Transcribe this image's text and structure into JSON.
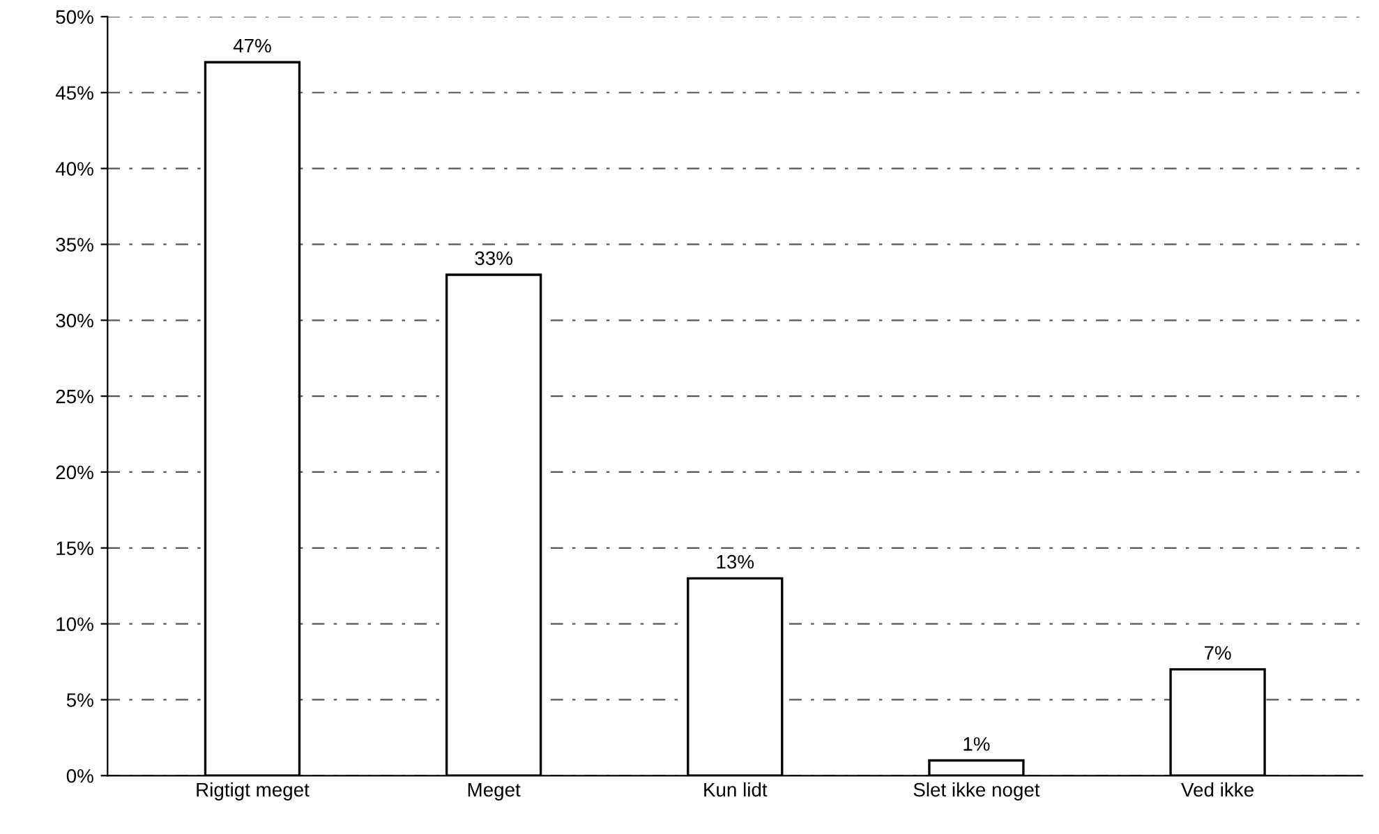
{
  "chart_data": {
    "type": "bar",
    "categories": [
      "Rigtigt meget",
      "Meget",
      "Kun lidt",
      "Slet ikke noget",
      "Ved ikke"
    ],
    "values": [
      47,
      33,
      13,
      1,
      7
    ],
    "color": "#ffffff",
    "value_labels": [
      "47%",
      "33%",
      "13%",
      "1%",
      "7%"
    ],
    "ylim": [
      0,
      50
    ],
    "yticks": [
      {
        "value": 0,
        "label": "0%"
      },
      {
        "value": 5,
        "label": "5%"
      },
      {
        "value": 10,
        "label": "10%"
      },
      {
        "value": 15,
        "label": "15%"
      },
      {
        "value": 20,
        "label": "20%"
      },
      {
        "value": 25,
        "label": "25%"
      },
      {
        "value": 30,
        "label": "30%"
      },
      {
        "value": 35,
        "label": "35%"
      },
      {
        "value": 40,
        "label": "40%"
      },
      {
        "value": 45,
        "label": "45%"
      },
      {
        "value": 50,
        "label": "50%"
      }
    ],
    "grid": "y",
    "legend": false
  }
}
